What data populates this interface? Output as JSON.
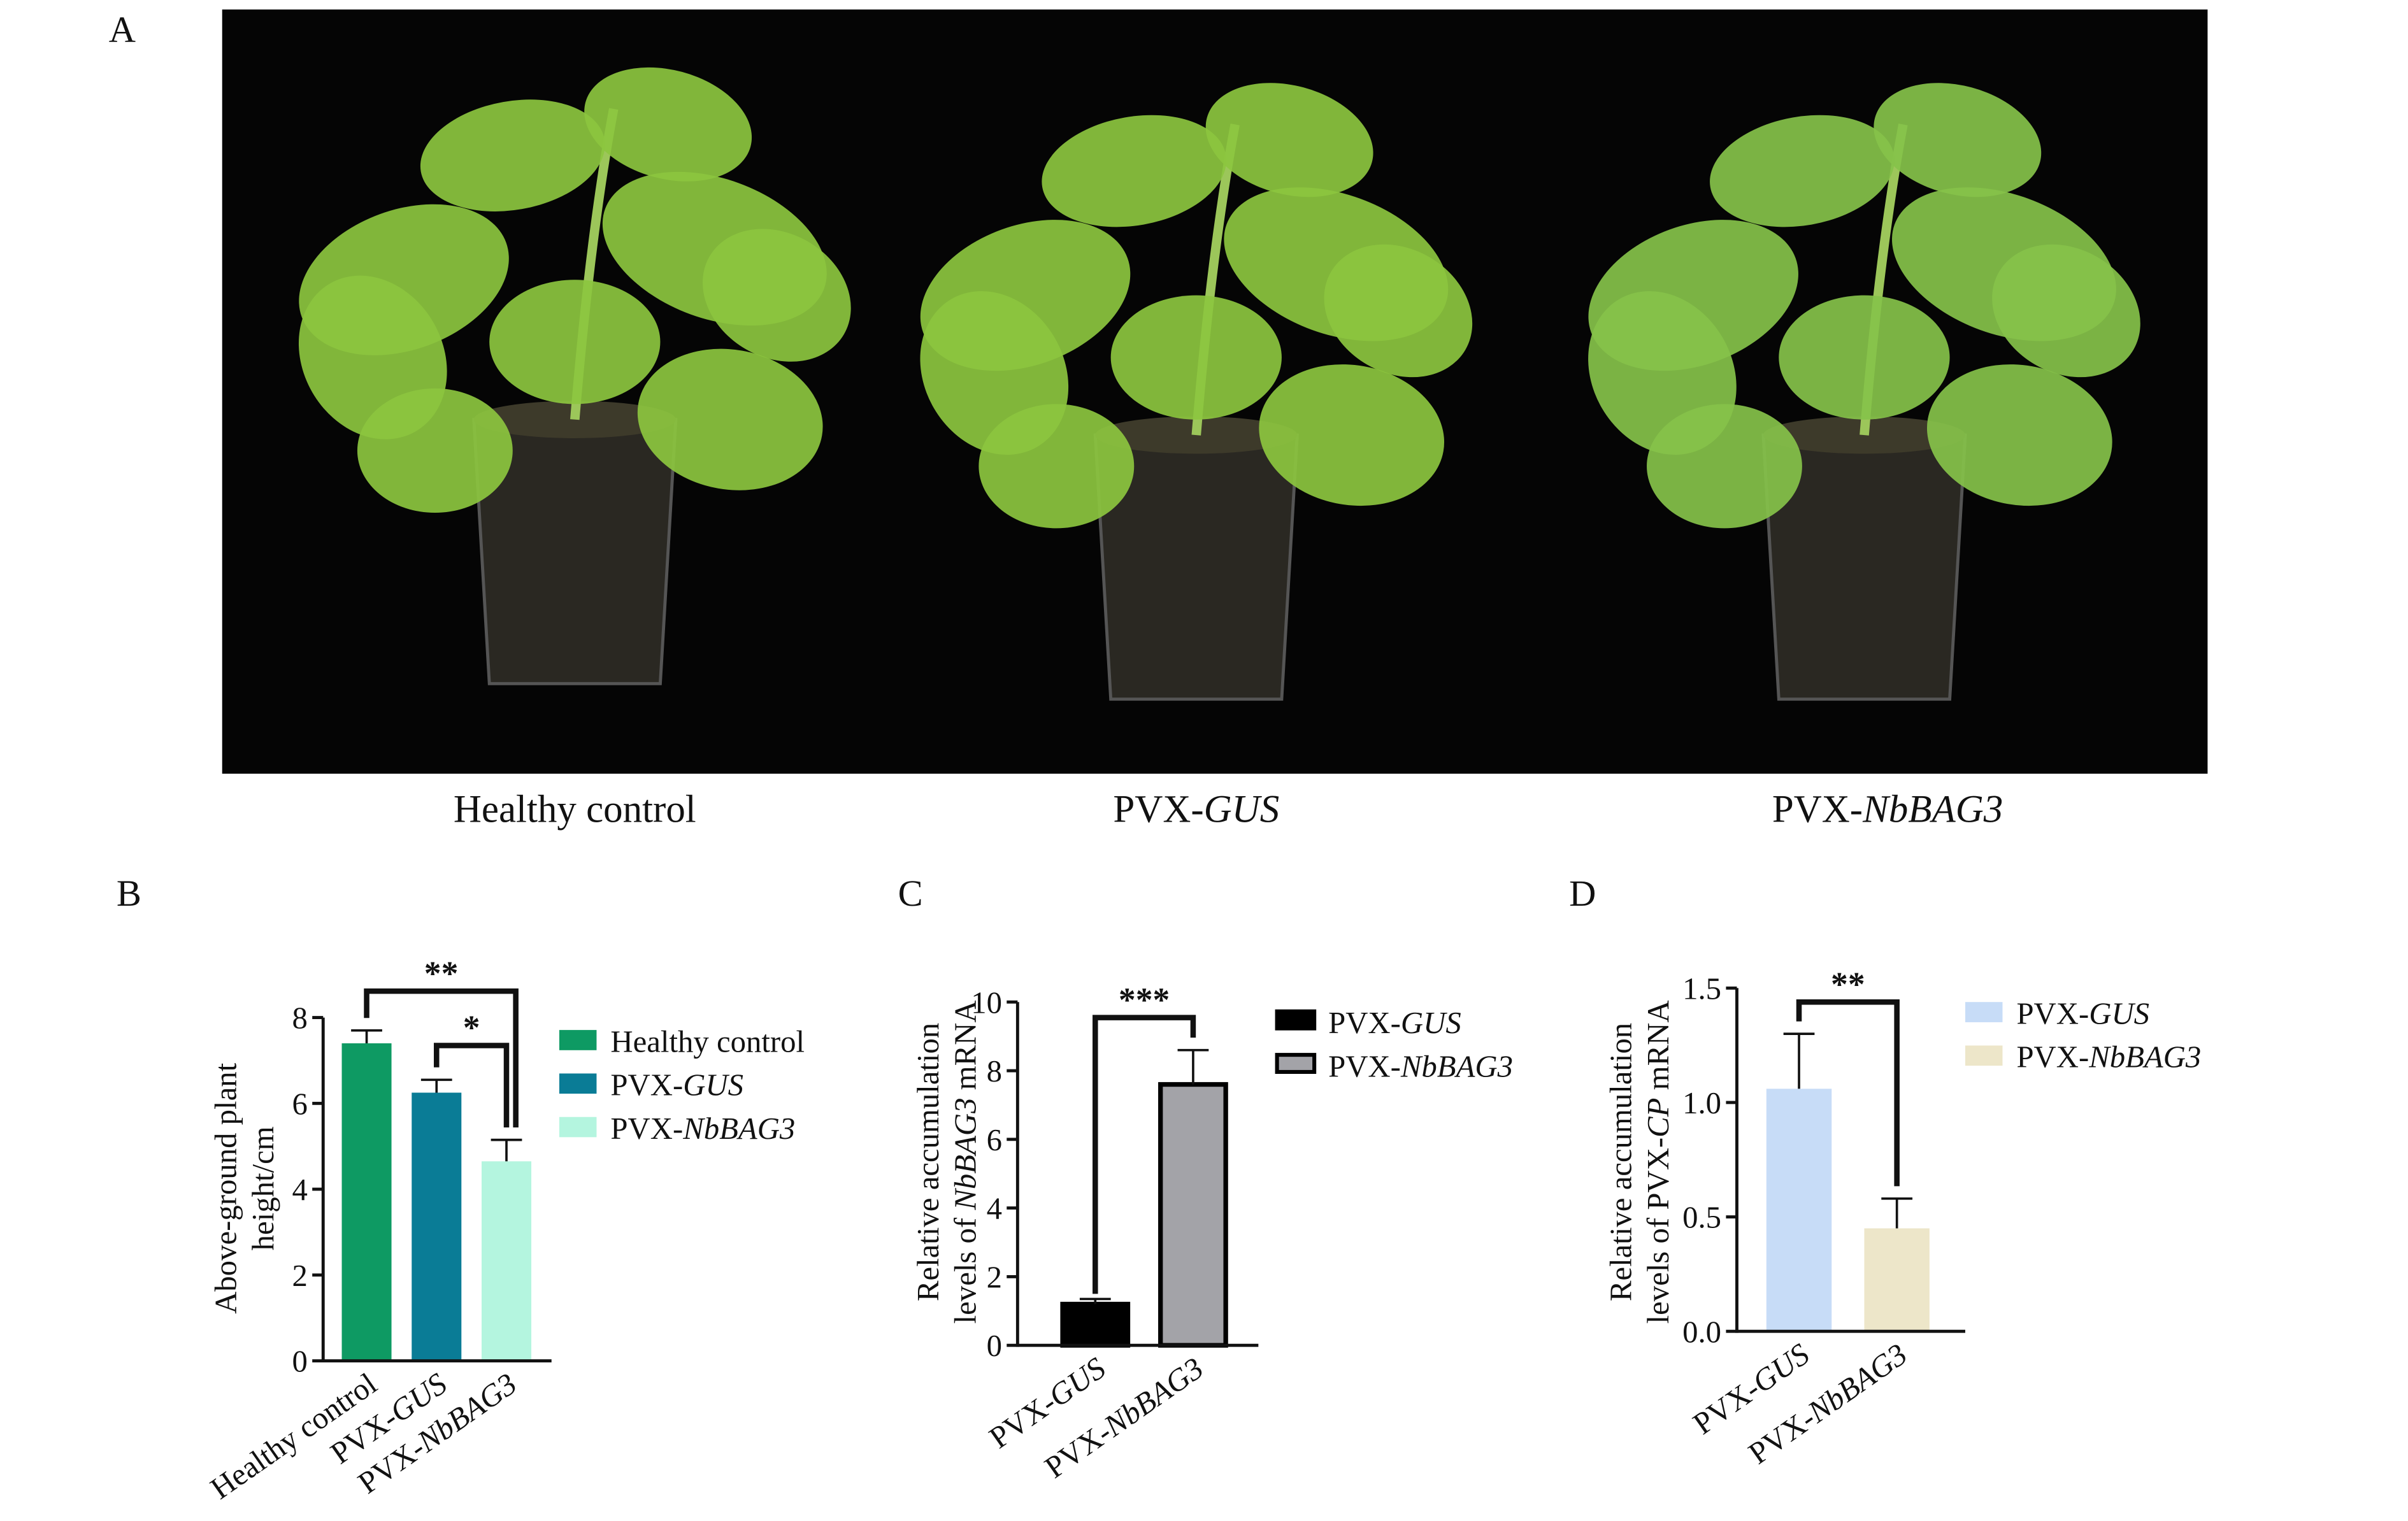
{
  "panels": {
    "A": {
      "letter": "A",
      "captions": [
        "Healthy control",
        "PVX-GUS",
        "PVX-NbBAG3"
      ]
    },
    "B": {
      "letter": "B"
    },
    "C": {
      "letter": "C"
    },
    "D": {
      "letter": "D"
    }
  },
  "chart_data": [
    {
      "panel": "B",
      "type": "bar",
      "categories": [
        "Healthy control",
        "PVX-GUS",
        "PVX-NbBAG3"
      ],
      "values": [
        7.4,
        6.25,
        4.65
      ],
      "errors": [
        0.3,
        0.3,
        0.5
      ],
      "colors": [
        "#0e9a63",
        "#0a7c96",
        "#b4f5df"
      ],
      "ylabel": [
        [
          {
            "t": "Above-ground plant"
          }
        ],
        [
          {
            "t": "height/cm"
          }
        ]
      ],
      "ylim": [
        0,
        8
      ],
      "yticks": [
        "0",
        "2",
        "4",
        "6",
        "8"
      ],
      "legend": [
        "Healthy control",
        "PVX-GUS",
        "PVX-NbBAG3"
      ],
      "legend_placement": "right",
      "significance": [
        {
          "from": 0,
          "to": 2,
          "label": "**"
        },
        {
          "from": 1,
          "to": 2,
          "label": "*"
        }
      ]
    },
    {
      "panel": "C",
      "type": "bar",
      "categories": [
        "PVX-GUS",
        "PVX-NbBAG3"
      ],
      "values": [
        1.2,
        7.6
      ],
      "errors": [
        0.15,
        1.0
      ],
      "colors": [
        "#000000",
        "#a3a3a8"
      ],
      "ylabel": [
        [
          {
            "t": "Relative accumulation"
          }
        ],
        [
          {
            "t": "levels of "
          },
          {
            "t": "NbBAG3",
            "i": true
          },
          {
            "t": " mRNA"
          }
        ]
      ],
      "ylim": [
        0,
        10
      ],
      "yticks": [
        "0",
        "2",
        "4",
        "6",
        "8",
        "10"
      ],
      "legend": [
        "PVX-GUS",
        "PVX-NbBAG3"
      ],
      "legend_placement": "right",
      "significance": [
        {
          "from": 0,
          "to": 1,
          "label": "***"
        }
      ]
    },
    {
      "panel": "D",
      "type": "bar",
      "categories": [
        "PVX-GUS",
        "PVX-NbBAG3"
      ],
      "values": [
        1.06,
        0.45
      ],
      "errors": [
        0.24,
        0.13
      ],
      "colors": [
        "#c7dcf7",
        "#ede6c9"
      ],
      "ylabel": [
        [
          {
            "t": "Relative accumulation"
          }
        ],
        [
          {
            "t": "levels of PVX-"
          },
          {
            "t": "CP",
            "i": true
          },
          {
            "t": " mRNA"
          }
        ]
      ],
      "ylim": [
        0,
        1.5
      ],
      "yticks": [
        "0.0",
        "0.5",
        "1.0",
        "1.5"
      ],
      "legend": [
        "PVX-GUS",
        "PVX-NbBAG3"
      ],
      "legend_placement": "right",
      "significance": [
        {
          "from": 0,
          "to": 1,
          "label": "**"
        }
      ]
    }
  ]
}
